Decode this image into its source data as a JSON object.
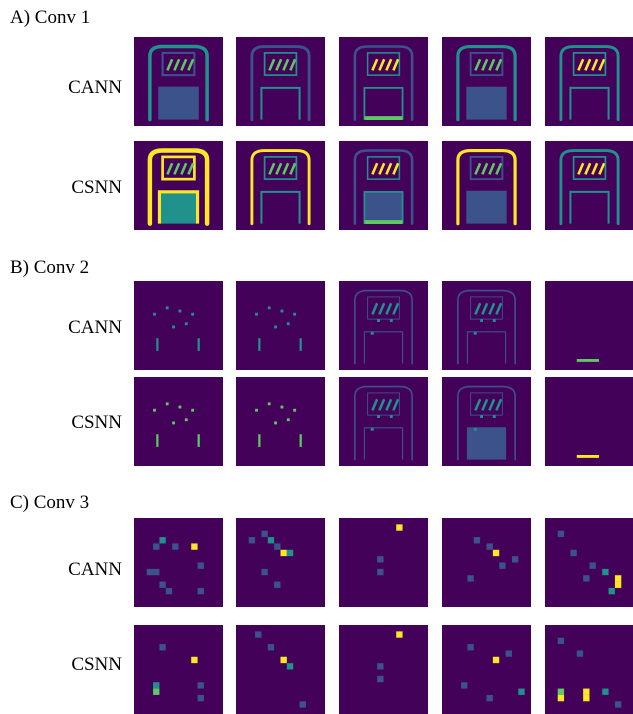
{
  "sections": [
    {
      "title": "A) Conv 1",
      "rows": [
        {
          "label": "CANN"
        },
        {
          "label": "CSNN"
        }
      ]
    },
    {
      "title": "B) Conv 2",
      "rows": [
        {
          "label": "CANN"
        },
        {
          "label": "CSNN"
        }
      ]
    },
    {
      "title": "C) Conv 3",
      "rows": [
        {
          "label": "CANN"
        },
        {
          "label": "CSNN"
        }
      ]
    }
  ],
  "colors": {
    "background": "#44015a",
    "mid": "#3b528b",
    "teal": "#21918c",
    "green": "#5ec962",
    "yellow": "#fde725"
  }
}
